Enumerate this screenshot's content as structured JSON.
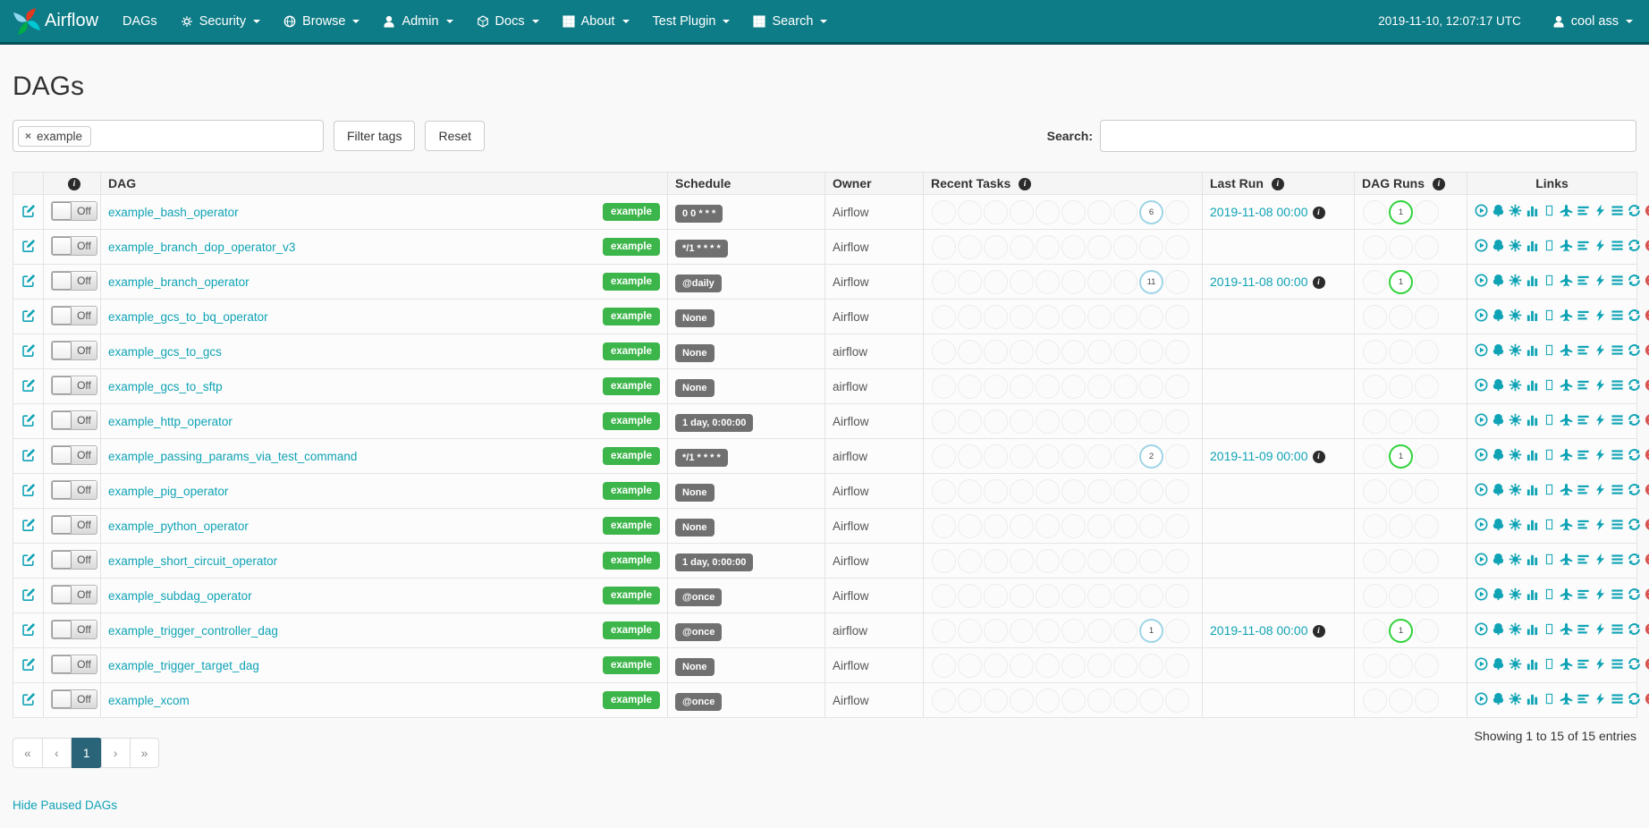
{
  "navbar": {
    "brand": "Airflow",
    "items": [
      {
        "label": "DAGs",
        "icon": null,
        "caret": false
      },
      {
        "label": "Security",
        "icon": "cogs",
        "caret": true
      },
      {
        "label": "Browse",
        "icon": "globe",
        "caret": true
      },
      {
        "label": "Admin",
        "icon": "user",
        "caret": true
      },
      {
        "label": "Docs",
        "icon": "cube",
        "caret": true
      },
      {
        "label": "About",
        "icon": "grid",
        "caret": true
      },
      {
        "label": "Test Plugin",
        "icon": null,
        "caret": true
      },
      {
        "label": "Search",
        "icon": "grid",
        "caret": true
      }
    ],
    "clock": "2019-11-10, 12:07:17 UTC",
    "user": {
      "label": "cool ass"
    }
  },
  "page": {
    "title": "DAGs"
  },
  "filters": {
    "tag_chip": "example",
    "filter_button": "Filter tags",
    "reset_button": "Reset",
    "search_label": "Search:",
    "search_value": ""
  },
  "table": {
    "headers": {
      "dag": "DAG",
      "schedule": "Schedule",
      "owner": "Owner",
      "recent_tasks": "Recent Tasks",
      "last_run": "Last Run",
      "dag_runs": "DAG Runs",
      "links": "Links"
    },
    "toggle_label": "Off",
    "link_icons": [
      "trigger-dag",
      "tree-view",
      "graph-view",
      "task-duration",
      "task-tries",
      "landing-times",
      "gantt",
      "code",
      "details",
      "refresh",
      "delete"
    ],
    "rows": [
      {
        "dag": "example_bash_operator",
        "tag": "example",
        "toggle": "Off",
        "schedule": "0 0 * * *",
        "owner": "Airflow",
        "recent_tasks": [
          null,
          null,
          null,
          null,
          null,
          null,
          null,
          null,
          6,
          null
        ],
        "last_run": "2019-11-08 00:00",
        "dag_runs": [
          null,
          1,
          null
        ]
      },
      {
        "dag": "example_branch_dop_operator_v3",
        "tag": "example",
        "toggle": "Off",
        "schedule": "*/1 * * * *",
        "owner": "Airflow",
        "recent_tasks": [
          null,
          null,
          null,
          null,
          null,
          null,
          null,
          null,
          null,
          null
        ],
        "last_run": null,
        "dag_runs": [
          null,
          null,
          null
        ]
      },
      {
        "dag": "example_branch_operator",
        "tag": "example",
        "toggle": "Off",
        "schedule": "@daily",
        "owner": "Airflow",
        "recent_tasks": [
          null,
          null,
          null,
          null,
          null,
          null,
          null,
          null,
          11,
          null
        ],
        "last_run": "2019-11-08 00:00",
        "dag_runs": [
          null,
          1,
          null
        ]
      },
      {
        "dag": "example_gcs_to_bq_operator",
        "tag": "example",
        "toggle": "Off",
        "schedule": "None",
        "owner": "Airflow",
        "recent_tasks": [
          null,
          null,
          null,
          null,
          null,
          null,
          null,
          null,
          null,
          null
        ],
        "last_run": null,
        "dag_runs": [
          null,
          null,
          null
        ]
      },
      {
        "dag": "example_gcs_to_gcs",
        "tag": "example",
        "toggle": "Off",
        "schedule": "None",
        "owner": "airflow",
        "recent_tasks": [
          null,
          null,
          null,
          null,
          null,
          null,
          null,
          null,
          null,
          null
        ],
        "last_run": null,
        "dag_runs": [
          null,
          null,
          null
        ]
      },
      {
        "dag": "example_gcs_to_sftp",
        "tag": "example",
        "toggle": "Off",
        "schedule": "None",
        "owner": "airflow",
        "recent_tasks": [
          null,
          null,
          null,
          null,
          null,
          null,
          null,
          null,
          null,
          null
        ],
        "last_run": null,
        "dag_runs": [
          null,
          null,
          null
        ]
      },
      {
        "dag": "example_http_operator",
        "tag": "example",
        "toggle": "Off",
        "schedule": "1 day, 0:00:00",
        "owner": "Airflow",
        "recent_tasks": [
          null,
          null,
          null,
          null,
          null,
          null,
          null,
          null,
          null,
          null
        ],
        "last_run": null,
        "dag_runs": [
          null,
          null,
          null
        ]
      },
      {
        "dag": "example_passing_params_via_test_command",
        "tag": "example",
        "toggle": "Off",
        "schedule": "*/1 * * * *",
        "owner": "airflow",
        "recent_tasks": [
          null,
          null,
          null,
          null,
          null,
          null,
          null,
          null,
          2,
          null
        ],
        "last_run": "2019-11-09 00:00",
        "dag_runs": [
          null,
          1,
          null
        ]
      },
      {
        "dag": "example_pig_operator",
        "tag": "example",
        "toggle": "Off",
        "schedule": "None",
        "owner": "Airflow",
        "recent_tasks": [
          null,
          null,
          null,
          null,
          null,
          null,
          null,
          null,
          null,
          null
        ],
        "last_run": null,
        "dag_runs": [
          null,
          null,
          null
        ]
      },
      {
        "dag": "example_python_operator",
        "tag": "example",
        "toggle": "Off",
        "schedule": "None",
        "owner": "Airflow",
        "recent_tasks": [
          null,
          null,
          null,
          null,
          null,
          null,
          null,
          null,
          null,
          null
        ],
        "last_run": null,
        "dag_runs": [
          null,
          null,
          null
        ]
      },
      {
        "dag": "example_short_circuit_operator",
        "tag": "example",
        "toggle": "Off",
        "schedule": "1 day, 0:00:00",
        "owner": "Airflow",
        "recent_tasks": [
          null,
          null,
          null,
          null,
          null,
          null,
          null,
          null,
          null,
          null
        ],
        "last_run": null,
        "dag_runs": [
          null,
          null,
          null
        ]
      },
      {
        "dag": "example_subdag_operator",
        "tag": "example",
        "toggle": "Off",
        "schedule": "@once",
        "owner": "Airflow",
        "recent_tasks": [
          null,
          null,
          null,
          null,
          null,
          null,
          null,
          null,
          null,
          null
        ],
        "last_run": null,
        "dag_runs": [
          null,
          null,
          null
        ]
      },
      {
        "dag": "example_trigger_controller_dag",
        "tag": "example",
        "toggle": "Off",
        "schedule": "@once",
        "owner": "airflow",
        "recent_tasks": [
          null,
          null,
          null,
          null,
          null,
          null,
          null,
          null,
          1,
          null
        ],
        "last_run": "2019-11-08 00:00",
        "dag_runs": [
          null,
          1,
          null
        ]
      },
      {
        "dag": "example_trigger_target_dag",
        "tag": "example",
        "toggle": "Off",
        "schedule": "None",
        "owner": "Airflow",
        "recent_tasks": [
          null,
          null,
          null,
          null,
          null,
          null,
          null,
          null,
          null,
          null
        ],
        "last_run": null,
        "dag_runs": [
          null,
          null,
          null
        ]
      },
      {
        "dag": "example_xcom",
        "tag": "example",
        "toggle": "Off",
        "schedule": "@once",
        "owner": "Airflow",
        "recent_tasks": [
          null,
          null,
          null,
          null,
          null,
          null,
          null,
          null,
          null,
          null
        ],
        "last_run": null,
        "dag_runs": [
          null,
          null,
          null
        ]
      }
    ]
  },
  "pagination": {
    "first": "«",
    "prev": "‹",
    "pages": [
      "1"
    ],
    "active_page": "1",
    "next": "›",
    "last": "»"
  },
  "summary": "Showing 1 to 15 of 15 entries",
  "footer_link": "Hide Paused DAGs",
  "colors": {
    "navbar": "#0d7c87",
    "accent_link": "#0fa3b5",
    "tag_green": "#3cb54a",
    "dag_run_success_green": "#2fd33a",
    "recent_task_blue": "#9ed4e6",
    "delete_red": "#d9534f",
    "schedule_badge_gray": "#707070"
  }
}
